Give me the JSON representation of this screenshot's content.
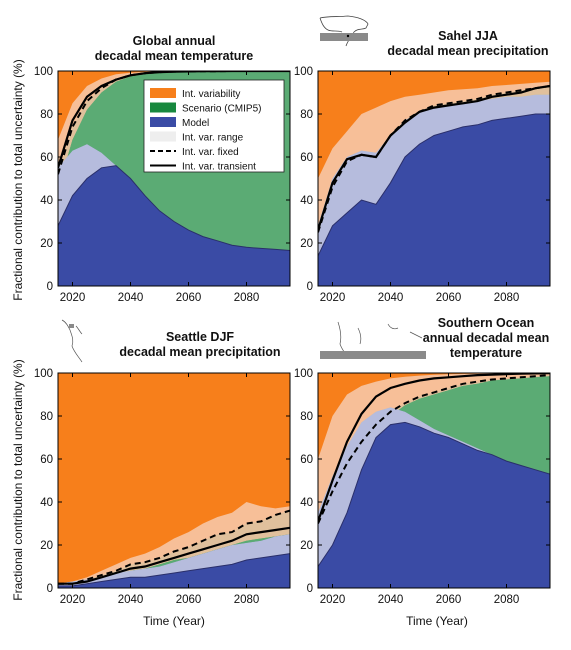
{
  "figure": {
    "ylabel": "Fractional contribution to total uncertainty (%)",
    "xlabel": "Time (Year)"
  },
  "legend": [
    {
      "label": "Int. variability",
      "kind": "patch",
      "color": "#f77f1b"
    },
    {
      "label": "Scenario (CMIP5)",
      "kind": "patch",
      "color": "#17883e"
    },
    {
      "label": "Model",
      "kind": "patch",
      "color": "#3a4ba5"
    },
    {
      "label": "Int. var. range",
      "kind": "patch",
      "color": "#eeeeee"
    },
    {
      "label": "Int. var. fixed",
      "kind": "dashed",
      "color": "#000000"
    },
    {
      "label": "Int. var. transient",
      "kind": "solid",
      "color": "#000000"
    }
  ],
  "colors": {
    "int_var": "#f77f1b",
    "int_var_light": "#f6c7a6",
    "scenario": "#17883e",
    "scenario_light": "#93c8a0",
    "model": "#3a4ba5",
    "model_light": "#b6bcdd",
    "line": "#000000"
  },
  "icons": [
    "world-map-sahel-region-icon",
    "world-map-seattle-region-icon",
    "world-map-southern-ocean-icon"
  ],
  "chart_data": [
    {
      "type": "area",
      "title_lines": [
        "Global annual",
        "decadal mean temperature"
      ],
      "xlabel": "",
      "ylabel": "Fractional contribution to total uncertainty (%)",
      "xlim": [
        2015,
        2095
      ],
      "ylim": [
        0,
        100
      ],
      "xticks": [
        2020,
        2040,
        2060,
        2080
      ],
      "yticks": [
        0,
        20,
        40,
        60,
        80,
        100
      ],
      "legend": true,
      "x": [
        2015,
        2020,
        2025,
        2030,
        2035,
        2040,
        2045,
        2050,
        2055,
        2060,
        2065,
        2070,
        2075,
        2080,
        2085,
        2090,
        2095
      ],
      "model_fixed": [
        28,
        42,
        50,
        55,
        56,
        50,
        42,
        35,
        30,
        26,
        23,
        21,
        19,
        18,
        17.5,
        17,
        16.5
      ],
      "model_transient": [
        48,
        60,
        64,
        60,
        55,
        50,
        42,
        35,
        30,
        26,
        23,
        21,
        19,
        18,
        17.5,
        17,
        16.5
      ],
      "model_range_lower": [
        28,
        42,
        50,
        55,
        56,
        50,
        42,
        35,
        30,
        26,
        23,
        21,
        19,
        18,
        17.5,
        17,
        16.5
      ],
      "model_range_upper": [
        55,
        63,
        66,
        62,
        56,
        50,
        42,
        35,
        30,
        26,
        23,
        21,
        19,
        18,
        17.5,
        17,
        16.5
      ],
      "line_fixed": [
        52,
        74,
        86,
        92,
        96,
        98,
        99,
        99.5,
        99.7,
        99.8,
        99.9,
        99.9,
        100,
        100,
        100,
        100,
        100
      ],
      "line_transient": [
        55,
        77,
        88,
        93,
        96,
        98,
        99,
        99.5,
        99.7,
        99.8,
        99.9,
        99.9,
        100,
        100,
        100,
        100,
        100
      ],
      "iv_range_lower": [
        45,
        68,
        82,
        90,
        95,
        97.5,
        98.8,
        99.3,
        99.6,
        99.8,
        99.9,
        99.9,
        100,
        100,
        100,
        100,
        100
      ],
      "iv_range_upper": [
        68,
        85,
        93,
        96.5,
        98.5,
        99.2,
        99.6,
        99.8,
        99.9,
        100,
        100,
        100,
        100,
        100,
        100,
        100,
        100
      ]
    },
    {
      "type": "area",
      "title_lines": [
        "Sahel JJA",
        "decadal mean precipitation"
      ],
      "xlabel": "",
      "ylabel": "",
      "xlim": [
        2015,
        2095
      ],
      "ylim": [
        0,
        100
      ],
      "xticks": [
        2020,
        2040,
        2060,
        2080
      ],
      "yticks": [
        0,
        20,
        40,
        60,
        80,
        100
      ],
      "legend": false,
      "x": [
        2015,
        2020,
        2025,
        2030,
        2035,
        2040,
        2045,
        2050,
        2055,
        2060,
        2065,
        2070,
        2075,
        2080,
        2085,
        2090,
        2095
      ],
      "model_fixed": [
        14,
        28,
        34,
        40,
        38,
        48,
        60,
        66,
        70,
        72,
        74,
        75,
        77,
        78,
        79,
        80,
        80
      ],
      "model_transient": [
        24,
        45,
        57,
        60,
        58,
        67,
        74,
        78,
        81,
        82,
        83,
        84,
        85,
        86,
        86,
        87,
        87
      ],
      "model_range_lower": [
        14,
        28,
        34,
        40,
        38,
        48,
        60,
        66,
        70,
        72,
        74,
        75,
        77,
        78,
        79,
        80,
        80
      ],
      "model_range_upper": [
        28,
        50,
        60,
        63,
        62,
        70,
        77,
        81,
        83,
        84,
        85,
        86,
        87,
        88,
        88,
        89,
        89
      ],
      "line_fixed": [
        25,
        46,
        58,
        61,
        60,
        70,
        77,
        81,
        84,
        85,
        86,
        87,
        89,
        90,
        91,
        92,
        93
      ],
      "line_transient": [
        26,
        48,
        59,
        61,
        60,
        70,
        76,
        81,
        83,
        84,
        85,
        86,
        88,
        89,
        90,
        92,
        93
      ],
      "iv_range_lower": [
        22,
        40,
        52,
        57,
        55,
        64,
        72,
        77,
        80,
        82,
        83,
        84,
        85,
        86,
        87,
        88,
        88
      ],
      "iv_range_upper": [
        50,
        64,
        72,
        80,
        83,
        86,
        88,
        89,
        90,
        91,
        91.5,
        92,
        93,
        93.5,
        94,
        94.5,
        95
      ]
    },
    {
      "type": "area",
      "title_lines": [
        "Seattle DJF",
        "decadal mean precipitation"
      ],
      "xlabel": "Time (Year)",
      "ylabel": "Fractional contribution to total uncertainty (%)",
      "xlim": [
        2015,
        2095
      ],
      "ylim": [
        0,
        100
      ],
      "xticks": [
        2020,
        2040,
        2060,
        2080
      ],
      "yticks": [
        0,
        20,
        40,
        60,
        80,
        100
      ],
      "legend": false,
      "x": [
        2015,
        2020,
        2025,
        2030,
        2035,
        2040,
        2045,
        2050,
        2055,
        2060,
        2065,
        2070,
        2075,
        2080,
        2085,
        2090,
        2095
      ],
      "model_fixed": [
        1,
        1,
        2,
        3,
        4,
        5,
        5,
        6,
        7,
        8,
        9,
        10,
        11,
        13,
        14,
        15,
        16
      ],
      "model_transient": [
        1.5,
        2,
        3,
        4,
        5,
        6,
        7,
        8,
        9,
        10,
        12,
        13,
        15,
        16,
        17,
        18,
        20
      ],
      "model_range_lower": [
        1,
        1,
        2,
        3,
        4,
        5,
        5,
        6,
        7,
        8,
        9,
        10,
        11,
        13,
        14,
        15,
        16
      ],
      "model_range_upper": [
        2,
        3,
        4,
        5,
        7,
        8,
        9,
        10,
        12,
        14,
        16,
        18,
        20,
        21,
        22,
        24,
        25
      ],
      "line_fixed": [
        2,
        2,
        4,
        6,
        8,
        11,
        12,
        14,
        17,
        19,
        22,
        25,
        26,
        30,
        31,
        34,
        36
      ],
      "line_transient": [
        2,
        2,
        3,
        5,
        7,
        9,
        10,
        12,
        14,
        16,
        18,
        20,
        22,
        25,
        26,
        27,
        28
      ],
      "iv_range_lower": [
        1,
        1,
        2,
        4,
        6,
        8,
        9,
        11,
        13,
        14,
        16,
        18,
        20,
        22,
        23,
        24,
        25
      ],
      "iv_range_upper": [
        2,
        3,
        5,
        8,
        11,
        14,
        16,
        19,
        23,
        26,
        30,
        33,
        35,
        40,
        38,
        37,
        38
      ]
    },
    {
      "type": "area",
      "title_lines": [
        "Southern Ocean",
        "annual decadal mean",
        "temperature"
      ],
      "xlabel": "Time (Year)",
      "ylabel": "",
      "xlim": [
        2015,
        2095
      ],
      "ylim": [
        0,
        100
      ],
      "xticks": [
        2020,
        2040,
        2060,
        2080
      ],
      "yticks": [
        0,
        20,
        40,
        60,
        80,
        100
      ],
      "legend": false,
      "x": [
        2015,
        2020,
        2025,
        2030,
        2035,
        2040,
        2045,
        2050,
        2055,
        2060,
        2065,
        2070,
        2075,
        2080,
        2085,
        2090,
        2095
      ],
      "model_fixed": [
        10,
        20,
        35,
        55,
        70,
        76,
        77,
        75,
        72,
        70,
        67,
        64,
        62,
        59,
        57,
        55,
        53
      ],
      "model_transient": [
        30,
        45,
        60,
        73,
        80,
        82,
        81,
        77,
        74,
        71,
        68,
        65,
        62,
        59,
        57,
        55,
        53
      ],
      "model_range_lower": [
        10,
        20,
        35,
        55,
        70,
        76,
        77,
        75,
        72,
        70,
        67,
        64,
        62,
        59,
        57,
        55,
        53
      ],
      "model_range_upper": [
        35,
        52,
        66,
        77,
        82,
        84,
        82,
        78,
        74,
        71,
        68,
        65,
        62,
        59,
        57,
        55,
        53
      ],
      "line_fixed": [
        30,
        45,
        58,
        68,
        76,
        82,
        86,
        89,
        91,
        93,
        95,
        96,
        97,
        97.5,
        98,
        98.5,
        99
      ],
      "line_transient": [
        31,
        50,
        68,
        81,
        89,
        93,
        95,
        96.5,
        97.5,
        98,
        98.5,
        99,
        99.2,
        99.5,
        99.7,
        99.8,
        99.9
      ],
      "iv_range_lower": [
        28,
        42,
        56,
        66,
        74,
        80,
        85,
        88,
        90,
        92,
        94,
        95,
        96.5,
        97,
        97.5,
        98,
        98.5
      ],
      "iv_range_upper": [
        60,
        80,
        90,
        94,
        96,
        97.5,
        98.3,
        98.8,
        99.2,
        99.4,
        99.6,
        99.7,
        99.8,
        99.9,
        99.9,
        100,
        100
      ]
    }
  ]
}
